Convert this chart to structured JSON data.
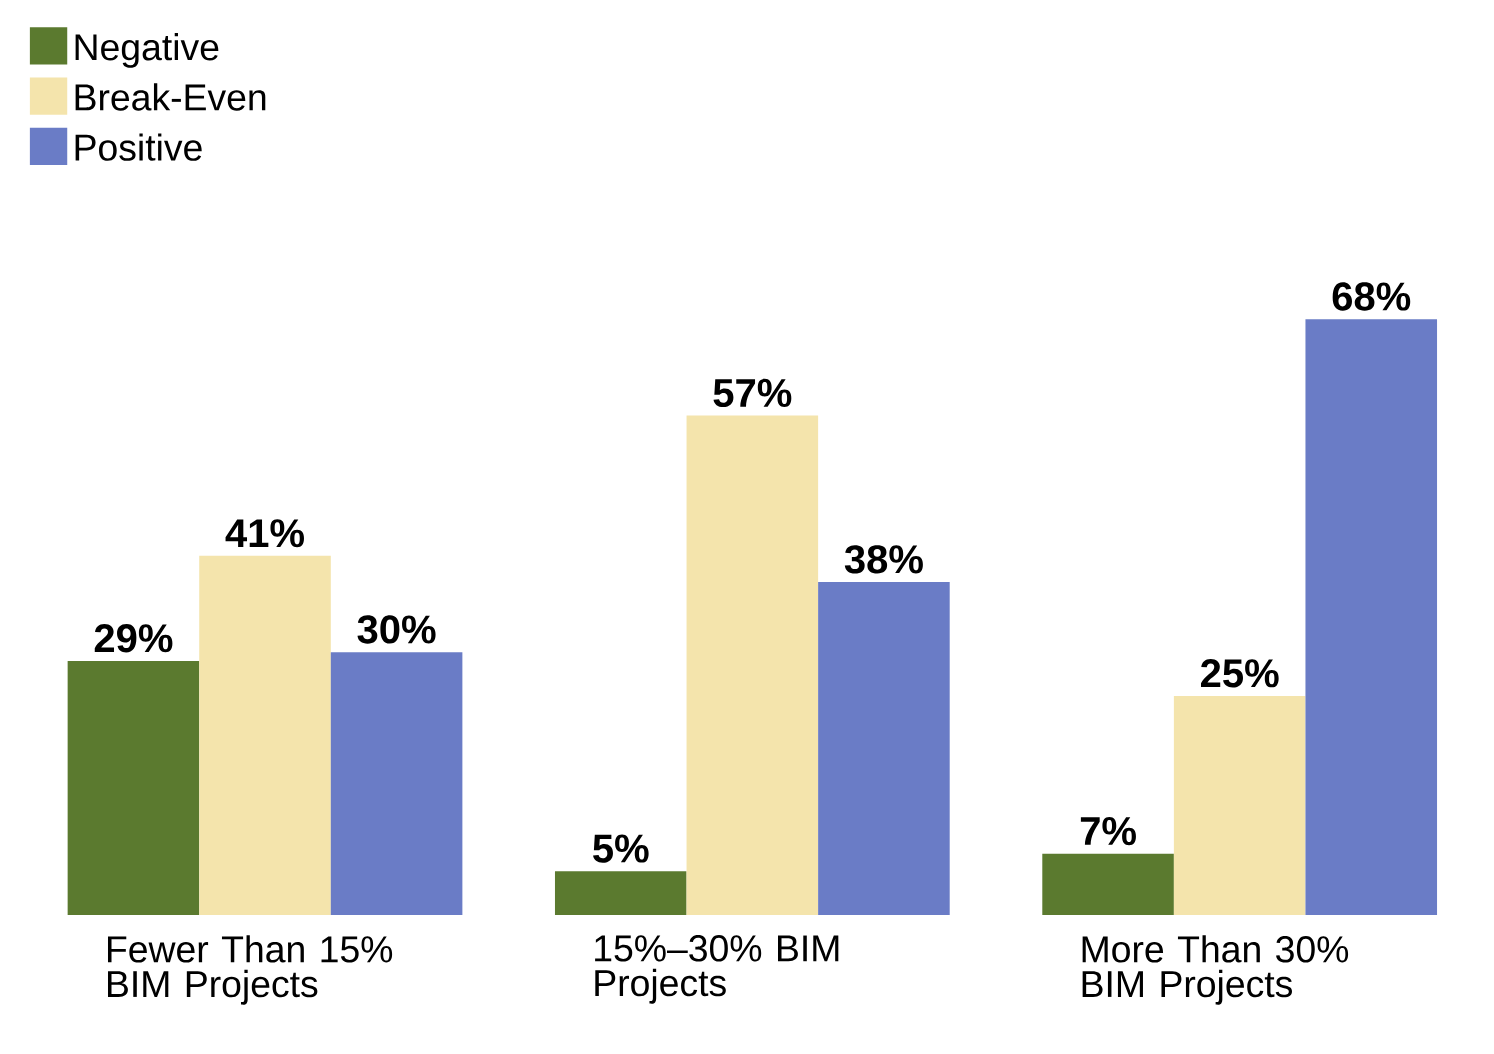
{
  "chart_data": {
    "type": "bar",
    "categories": [
      "Fewer Than 15% BIM Projects",
      "15%–30% BIM Projects",
      "More Than 30% BIM Projects"
    ],
    "series": [
      {
        "name": "Negative",
        "color": "#5b7a2f",
        "values": [
          29,
          5,
          7
        ],
        "value_labels": [
          "29%",
          "5%",
          "7%"
        ]
      },
      {
        "name": "Break-Even",
        "color": "#f4e4ac",
        "values": [
          41,
          57,
          25
        ],
        "value_labels": [
          "41%",
          "57%",
          "25%"
        ]
      },
      {
        "name": "Positive",
        "color": "#6a7cc6",
        "values": [
          30,
          38,
          68
        ],
        "value_labels": [
          "30%",
          "38%",
          "68%"
        ]
      }
    ],
    "legend": "top left"
  }
}
